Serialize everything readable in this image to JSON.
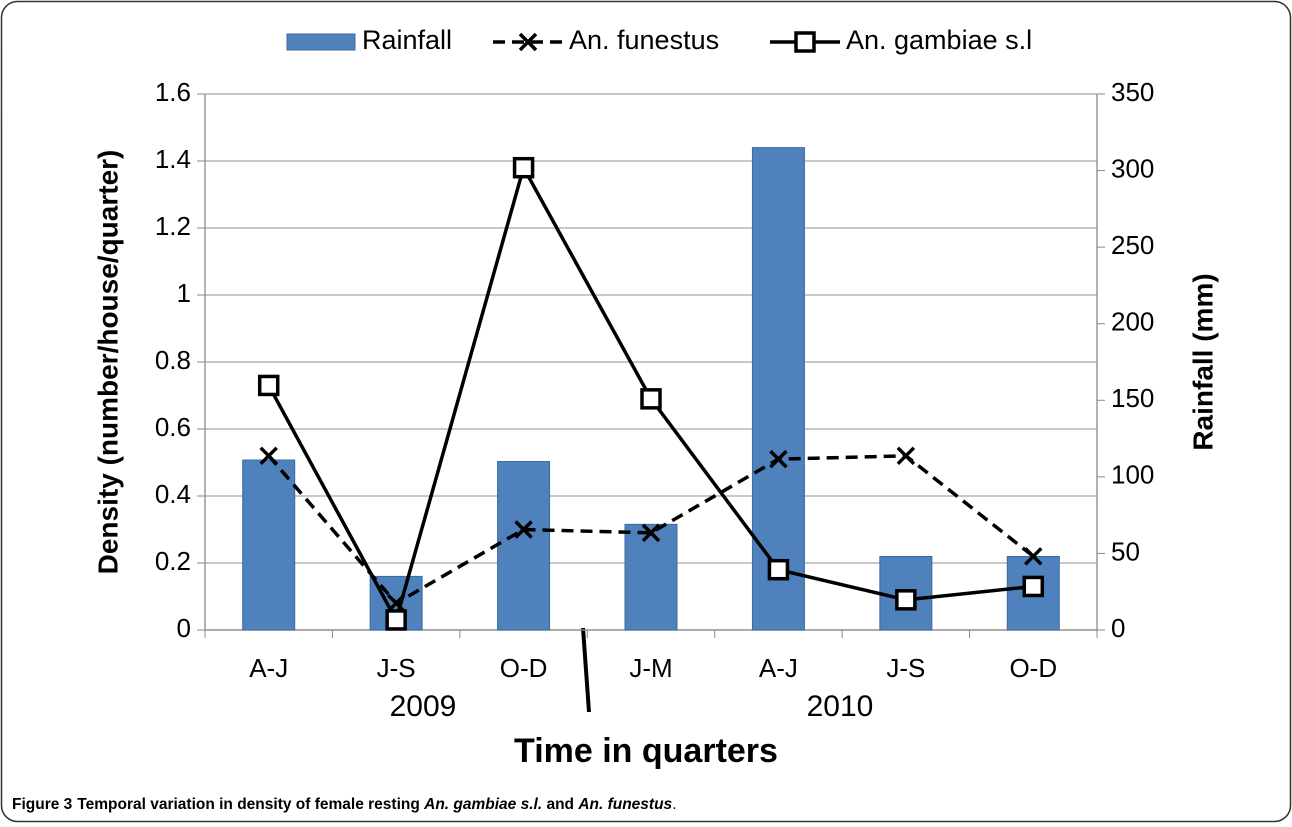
{
  "chart_data": {
    "type": "bar_line",
    "categories": [
      "A-J",
      "J-S",
      "O-D",
      "J-M",
      "A-J",
      "J-S",
      "O-D"
    ],
    "groups": [
      "2009",
      "2010"
    ],
    "x_label": "Time in quarters",
    "y_label": "Density (number/house/quarter)",
    "y2_label": "Rainfall (mm)",
    "ylim": [
      0,
      1.6
    ],
    "yticks": [
      0,
      0.2,
      0.4,
      0.6,
      0.8,
      1,
      1.2,
      1.4,
      1.6
    ],
    "y2lim": [
      0,
      350
    ],
    "y2ticks": [
      0,
      50,
      100,
      150,
      200,
      250,
      300,
      350
    ],
    "grid": true,
    "legend": "top",
    "series": [
      {
        "name": "Rainfall",
        "type": "bar",
        "axis": "y2",
        "color": "#4f81bd",
        "values": [
          111,
          35,
          110,
          69,
          315,
          48,
          48
        ]
      },
      {
        "name": "An. funestus",
        "type": "line",
        "style": "dashed",
        "marker": "x",
        "color": "#000000",
        "values": [
          0.52,
          0.08,
          0.3,
          0.29,
          0.51,
          0.52,
          0.22
        ]
      },
      {
        "name": "An. gambiae s.l",
        "type": "line",
        "style": "solid",
        "marker": "square",
        "color": "#000000",
        "values": [
          0.73,
          0.03,
          1.38,
          0.69,
          0.18,
          0.09,
          0.13
        ]
      }
    ]
  },
  "caption": {
    "label": "Figure 3",
    "parts": [
      "Temporal variation in density of female resting ",
      "An. gambiae s.l.",
      " and ",
      "An. funestus",
      "."
    ]
  }
}
